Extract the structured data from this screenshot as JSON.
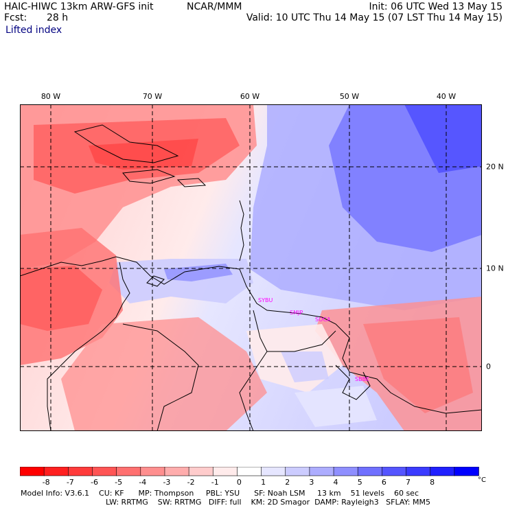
{
  "header": {
    "model": "HAIC-HIWC 13km ARW-GFS init",
    "org": "NCAR/MMM",
    "fcst_label": "Fcst:",
    "fcst_value": "28 h",
    "init": "Init: 06 UTC Wed 13 May 15",
    "valid": "Valid: 10 UTC Thu 14 May 15 (07 LST Thu 14 May 15)",
    "field": "Lifted index"
  },
  "map": {
    "lon_labels": [
      "80 W",
      "70 W",
      "60 W",
      "50 W",
      "40 W"
    ],
    "lat_labels": [
      "20 N",
      "10 N",
      "0"
    ],
    "stations": [
      "SYBU",
      "SMJP",
      "SOCA",
      "SBBE"
    ]
  },
  "colorbar": {
    "labels": [
      "-8",
      "-7",
      "-6",
      "-5",
      "-4",
      "-3",
      "-2",
      "-1",
      "0",
      "1",
      "2",
      "3",
      "4",
      "5",
      "6",
      "7",
      "8"
    ],
    "unit": "°C",
    "colors": [
      "#ff0000",
      "#ff2020",
      "#ff3b3b",
      "#ff5555",
      "#ff7070",
      "#ff8f8f",
      "#ffadad",
      "#ffcccc",
      "#ffebeb",
      "#ffffff",
      "#e6e6ff",
      "#ccccff",
      "#adadff",
      "#8f8fff",
      "#7070ff",
      "#5555ff",
      "#3b3bff",
      "#2020ff",
      "#0000ff"
    ]
  },
  "footer": {
    "line1": "Model Info: V3.6.1    CU: KF      MP: Thompson     PBL: YSU      SF: Noah LSM     13 km    51 levels    60 sec",
    "line2": "LW: RRTMG    SW: RRTMG   DIFF: full    KM: 2D Smagor  DAMP: Rayleigh3   SFLAY: MM5"
  }
}
